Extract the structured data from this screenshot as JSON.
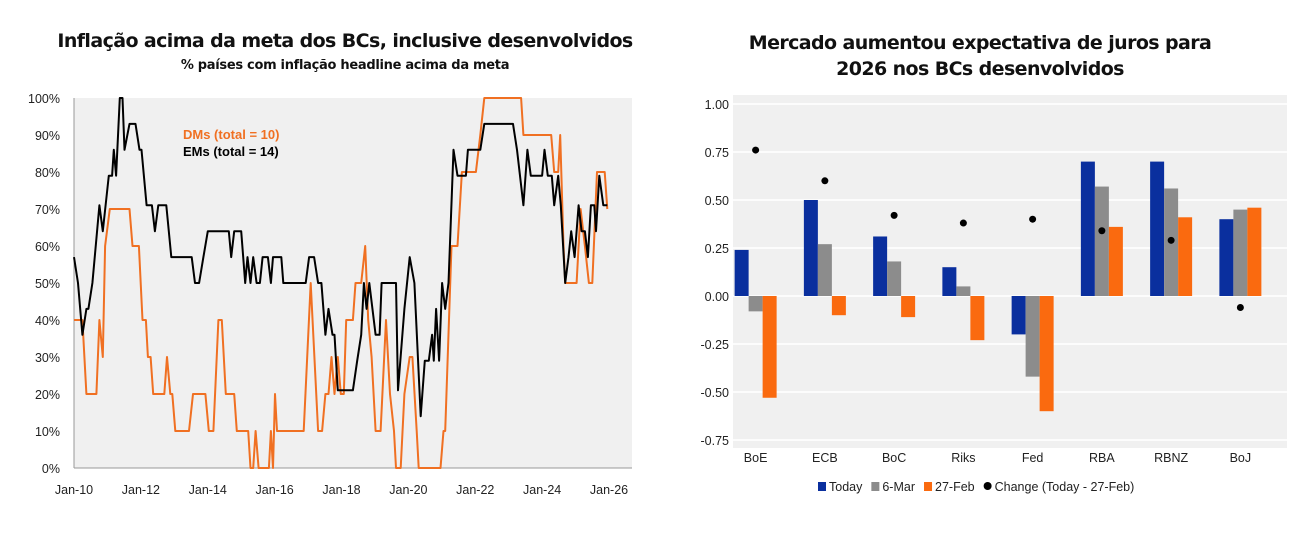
{
  "chart_data": [
    {
      "type": "line",
      "title": "Inflação acima da meta dos BCs, inclusive desenvolvidos",
      "subtitle": "% países com inflação headline acima da meta",
      "xlabel": "",
      "ylabel": "",
      "xlim": [
        2010,
        2026
      ],
      "ylim": [
        0,
        100
      ],
      "x_ticks": [
        "Jan-10",
        "Jan-12",
        "Jan-14",
        "Jan-16",
        "Jan-18",
        "Jan-20",
        "Jan-22",
        "Jan-24",
        "Jan-26"
      ],
      "y_ticks": [
        "0%",
        "10%",
        "20%",
        "30%",
        "40%",
        "50%",
        "60%",
        "70%",
        "80%",
        "90%",
        "100%"
      ],
      "grid": false,
      "legend_position": "top-center",
      "series": [
        {
          "name": "DMs (total = 10)",
          "color": "#f07022",
          "points": [
            [
              2010.0,
              40
            ],
            [
              2010.25,
              40
            ],
            [
              2010.37,
              20
            ],
            [
              2010.67,
              20
            ],
            [
              2010.76,
              40
            ],
            [
              2010.86,
              30
            ],
            [
              2010.93,
              60
            ],
            [
              2011.07,
              70
            ],
            [
              2011.66,
              70
            ],
            [
              2011.75,
              60
            ],
            [
              2011.94,
              60
            ],
            [
              2012.05,
              40
            ],
            [
              2012.15,
              40
            ],
            [
              2012.21,
              30
            ],
            [
              2012.29,
              30
            ],
            [
              2012.37,
              20
            ],
            [
              2012.7,
              20
            ],
            [
              2012.78,
              30
            ],
            [
              2012.88,
              20
            ],
            [
              2012.94,
              20
            ],
            [
              2013.03,
              10
            ],
            [
              2013.44,
              10
            ],
            [
              2013.56,
              20
            ],
            [
              2013.93,
              20
            ],
            [
              2014.03,
              10
            ],
            [
              2014.17,
              10
            ],
            [
              2014.32,
              40
            ],
            [
              2014.42,
              40
            ],
            [
              2014.54,
              20
            ],
            [
              2014.79,
              20
            ],
            [
              2014.87,
              10
            ],
            [
              2015.21,
              10
            ],
            [
              2015.28,
              0
            ],
            [
              2015.36,
              0
            ],
            [
              2015.43,
              10
            ],
            [
              2015.52,
              0
            ],
            [
              2015.83,
              0
            ],
            [
              2015.89,
              10
            ],
            [
              2015.95,
              0
            ],
            [
              2016.01,
              20
            ],
            [
              2016.07,
              10
            ],
            [
              2016.87,
              10
            ],
            [
              2017.08,
              50
            ],
            [
              2017.3,
              10
            ],
            [
              2017.42,
              10
            ],
            [
              2017.52,
              20
            ],
            [
              2017.61,
              20
            ],
            [
              2017.7,
              30
            ],
            [
              2017.79,
              20
            ],
            [
              2017.89,
              30
            ],
            [
              2017.98,
              20
            ],
            [
              2018.07,
              20
            ],
            [
              2018.14,
              40
            ],
            [
              2018.34,
              40
            ],
            [
              2018.42,
              50
            ],
            [
              2018.59,
              50
            ],
            [
              2018.71,
              60
            ],
            [
              2018.8,
              40
            ],
            [
              2018.9,
              30
            ],
            [
              2019.02,
              10
            ],
            [
              2019.17,
              10
            ],
            [
              2019.33,
              40
            ],
            [
              2019.45,
              20
            ],
            [
              2019.57,
              10
            ],
            [
              2019.63,
              0
            ],
            [
              2019.77,
              0
            ],
            [
              2019.88,
              20
            ],
            [
              2020.04,
              30
            ],
            [
              2020.12,
              30
            ],
            [
              2020.25,
              10
            ],
            [
              2020.31,
              0
            ],
            [
              2020.96,
              0
            ],
            [
              2021.05,
              10
            ],
            [
              2021.1,
              10
            ],
            [
              2021.29,
              60
            ],
            [
              2021.47,
              60
            ],
            [
              2021.6,
              80
            ],
            [
              2022.02,
              80
            ],
            [
              2022.15,
              90
            ],
            [
              2022.27,
              100
            ],
            [
              2023.37,
              100
            ],
            [
              2023.44,
              90
            ],
            [
              2024.27,
              90
            ],
            [
              2024.36,
              80
            ],
            [
              2024.48,
              80
            ],
            [
              2024.54,
              90
            ],
            [
              2024.64,
              60
            ],
            [
              2024.69,
              50
            ],
            [
              2025.03,
              50
            ],
            [
              2025.15,
              70
            ],
            [
              2025.28,
              60
            ],
            [
              2025.4,
              50
            ],
            [
              2025.5,
              50
            ],
            [
              2025.64,
              80
            ],
            [
              2025.87,
              80
            ],
            [
              2025.95,
              70
            ]
          ]
        },
        {
          "name": "EMs (total = 14)",
          "color": "#000000",
          "points": [
            [
              2010.0,
              57
            ],
            [
              2010.12,
              50
            ],
            [
              2010.25,
              36
            ],
            [
              2010.37,
              43
            ],
            [
              2010.43,
              43
            ],
            [
              2010.55,
              50
            ],
            [
              2010.76,
              71
            ],
            [
              2010.86,
              64
            ],
            [
              2011.04,
              79
            ],
            [
              2011.14,
              79
            ],
            [
              2011.19,
              86
            ],
            [
              2011.26,
              79
            ],
            [
              2011.37,
              100
            ],
            [
              2011.45,
              100
            ],
            [
              2011.51,
              86
            ],
            [
              2011.66,
              93
            ],
            [
              2011.84,
              93
            ],
            [
              2011.96,
              86
            ],
            [
              2012.02,
              86
            ],
            [
              2012.17,
              71
            ],
            [
              2012.33,
              71
            ],
            [
              2012.42,
              64
            ],
            [
              2012.52,
              71
            ],
            [
              2012.76,
              71
            ],
            [
              2012.91,
              57
            ],
            [
              2013.52,
              57
            ],
            [
              2013.62,
              50
            ],
            [
              2013.74,
              50
            ],
            [
              2013.87,
              57
            ],
            [
              2014.0,
              64
            ],
            [
              2014.63,
              64
            ],
            [
              2014.7,
              57
            ],
            [
              2014.79,
              64
            ],
            [
              2015.0,
              64
            ],
            [
              2015.12,
              50
            ],
            [
              2015.19,
              57
            ],
            [
              2015.28,
              50
            ],
            [
              2015.36,
              57
            ],
            [
              2015.46,
              50
            ],
            [
              2015.56,
              50
            ],
            [
              2015.64,
              57
            ],
            [
              2015.8,
              57
            ],
            [
              2015.89,
              50
            ],
            [
              2015.95,
              57
            ],
            [
              2016.2,
              57
            ],
            [
              2016.26,
              50
            ],
            [
              2016.93,
              50
            ],
            [
              2017.03,
              57
            ],
            [
              2017.18,
              57
            ],
            [
              2017.3,
              50
            ],
            [
              2017.4,
              50
            ],
            [
              2017.52,
              36
            ],
            [
              2017.61,
              43
            ],
            [
              2017.73,
              36
            ],
            [
              2017.79,
              36
            ],
            [
              2017.89,
              21
            ],
            [
              2018.34,
              21
            ],
            [
              2018.47,
              29
            ],
            [
              2018.59,
              36
            ],
            [
              2018.67,
              50
            ],
            [
              2018.75,
              43
            ],
            [
              2018.83,
              50
            ],
            [
              2019.02,
              36
            ],
            [
              2019.14,
              36
            ],
            [
              2019.2,
              50
            ],
            [
              2019.63,
              50
            ],
            [
              2019.69,
              21
            ],
            [
              2019.88,
              43
            ],
            [
              2020.04,
              57
            ],
            [
              2020.18,
              50
            ],
            [
              2020.37,
              14
            ],
            [
              2020.49,
              29
            ],
            [
              2020.61,
              29
            ],
            [
              2020.71,
              36
            ],
            [
              2020.76,
              29
            ],
            [
              2020.83,
              43
            ],
            [
              2020.92,
              29
            ],
            [
              2021.01,
              50
            ],
            [
              2021.1,
              43
            ],
            [
              2021.2,
              50
            ],
            [
              2021.35,
              86
            ],
            [
              2021.47,
              79
            ],
            [
              2021.72,
              79
            ],
            [
              2021.78,
              86
            ],
            [
              2022.15,
              86
            ],
            [
              2022.27,
              93
            ],
            [
              2023.13,
              93
            ],
            [
              2023.25,
              86
            ],
            [
              2023.44,
              71
            ],
            [
              2023.56,
              86
            ],
            [
              2023.66,
              79
            ],
            [
              2024.0,
              79
            ],
            [
              2024.07,
              86
            ],
            [
              2024.17,
              79
            ],
            [
              2024.29,
              79
            ],
            [
              2024.36,
              71
            ],
            [
              2024.48,
              79
            ],
            [
              2024.56,
              71
            ],
            [
              2024.69,
              50
            ],
            [
              2024.79,
              57
            ],
            [
              2024.87,
              64
            ],
            [
              2024.97,
              57
            ],
            [
              2025.09,
              71
            ],
            [
              2025.18,
              64
            ],
            [
              2025.28,
              64
            ],
            [
              2025.37,
              57
            ],
            [
              2025.46,
              71
            ],
            [
              2025.56,
              71
            ],
            [
              2025.61,
              64
            ],
            [
              2025.71,
              79
            ],
            [
              2025.83,
              71
            ],
            [
              2025.95,
              71
            ]
          ]
        }
      ]
    },
    {
      "type": "bar",
      "title": "Mercado aumentou expectativa de juros para 2026 nos BCs desenvolvidos",
      "title_lines": [
        "Mercado aumentou expectativa de juros para",
        "2026 nos BCs desenvolvidos"
      ],
      "categories": [
        "BoE",
        "ECB",
        "BoC",
        "Riks",
        "Fed",
        "RBA",
        "RBNZ",
        "BoJ"
      ],
      "ylim": [
        -0.75,
        1.0
      ],
      "y_ticks": [
        "1.00",
        "0.75",
        "0.50",
        "0.25",
        "0.00",
        "-0.25",
        "-0.50",
        "-0.75"
      ],
      "y_tick_values": [
        1.0,
        0.75,
        0.5,
        0.25,
        0,
        -0.25,
        -0.5,
        -0.75
      ],
      "grid": true,
      "legend_position": "bottom",
      "series": [
        {
          "name": "Today",
          "kind": "bar",
          "color": "#0a2f9e",
          "values": [
            0.24,
            0.5,
            0.31,
            0.15,
            -0.2,
            0.7,
            0.7,
            0.4
          ]
        },
        {
          "name": "6-Mar",
          "kind": "bar",
          "color": "#8c8c8c",
          "values": [
            -0.08,
            0.27,
            0.18,
            0.05,
            -0.42,
            0.57,
            0.56,
            0.45
          ]
        },
        {
          "name": "27-Feb",
          "kind": "bar",
          "color": "#fa6a0f",
          "values": [
            -0.53,
            -0.1,
            -0.11,
            -0.23,
            -0.6,
            0.36,
            0.41,
            0.46
          ]
        },
        {
          "name": "Change (Today - 27-Feb)",
          "kind": "dot",
          "color": "#000000",
          "values": [
            0.76,
            0.6,
            0.42,
            0.38,
            0.4,
            0.34,
            0.29,
            -0.06
          ]
        }
      ]
    }
  ]
}
